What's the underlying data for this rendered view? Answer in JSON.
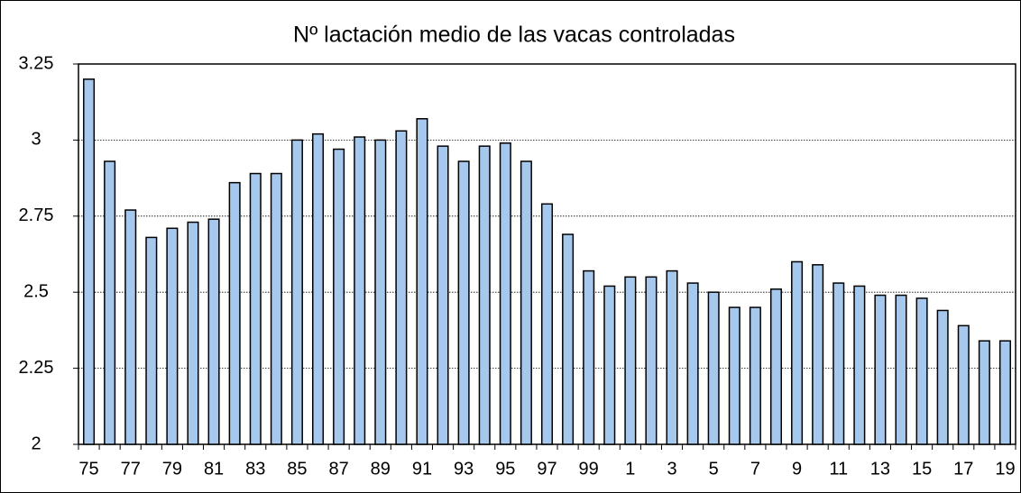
{
  "chart_data": {
    "type": "bar",
    "title": "Nº lactación medio de las vacas controladas",
    "categories": [
      "75",
      null,
      "77",
      null,
      "79",
      null,
      "81",
      null,
      "83",
      null,
      "85",
      null,
      "87",
      null,
      "89",
      null,
      "91",
      null,
      "93",
      null,
      "95",
      null,
      "97",
      null,
      "99",
      null,
      "1",
      null,
      "3",
      null,
      "5",
      null,
      "7",
      null,
      "9",
      null,
      "11",
      null,
      "13",
      null,
      "15",
      null,
      "17",
      null,
      "19"
    ],
    "values": [
      3.2,
      2.93,
      2.77,
      2.68,
      2.71,
      2.73,
      2.74,
      2.86,
      2.89,
      2.89,
      3.0,
      3.02,
      2.97,
      3.01,
      3.0,
      3.03,
      3.07,
      2.98,
      2.93,
      2.98,
      2.99,
      2.93,
      2.79,
      2.69,
      2.57,
      2.52,
      2.55,
      2.55,
      2.57,
      2.53,
      2.5,
      2.45,
      2.45,
      2.51,
      2.6,
      2.59,
      2.53,
      2.52,
      2.49,
      2.49,
      2.48,
      2.44,
      2.39,
      2.34,
      2.34
    ],
    "color": "#a6c8ec",
    "ylim": [
      2,
      3.25
    ],
    "yticks": [
      2,
      2.25,
      2.5,
      2.75,
      3,
      3.25
    ],
    "grid": true
  }
}
